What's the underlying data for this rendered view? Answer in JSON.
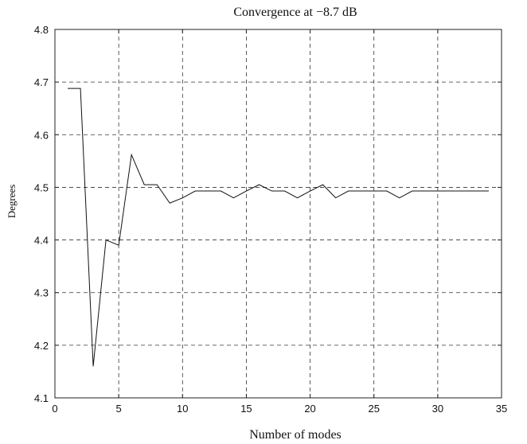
{
  "chart_data": {
    "type": "line",
    "title": "Convergence at −8.7 dB",
    "xlabel": "Number of modes",
    "ylabel": "Degrees",
    "xlim": [
      0,
      35
    ],
    "ylim": [
      4.1,
      4.8
    ],
    "xticks": [
      0,
      5,
      10,
      15,
      20,
      25,
      30,
      35
    ],
    "yticks": [
      4.1,
      4.2,
      4.3,
      4.4,
      4.5,
      4.6,
      4.7,
      4.8
    ],
    "xtick_labels": [
      "0",
      "5",
      "10",
      "15",
      "20",
      "25",
      "30",
      "35"
    ],
    "ytick_labels": [
      "4.1",
      "4.2",
      "4.3",
      "4.4",
      "4.5",
      "4.6",
      "4.7",
      "4.8"
    ],
    "grid": true,
    "series_color": "#111111",
    "series": [
      {
        "x": [
          1,
          2,
          3,
          4,
          5,
          6,
          7,
          8,
          9,
          10,
          11,
          12,
          13,
          14,
          15,
          16,
          17,
          18,
          19,
          20,
          21,
          22,
          23,
          24,
          25,
          26,
          27,
          28,
          29,
          30,
          31,
          32,
          33,
          34
        ],
        "y": [
          4.688,
          4.688,
          4.16,
          4.4,
          4.39,
          4.562,
          4.505,
          4.505,
          4.47,
          4.48,
          4.493,
          4.493,
          4.493,
          4.48,
          4.493,
          4.505,
          4.493,
          4.493,
          4.48,
          4.493,
          4.505,
          4.48,
          4.493,
          4.493,
          4.493,
          4.493,
          4.48,
          4.493,
          4.493,
          4.493,
          4.493,
          4.493,
          4.493,
          4.493
        ]
      }
    ]
  }
}
